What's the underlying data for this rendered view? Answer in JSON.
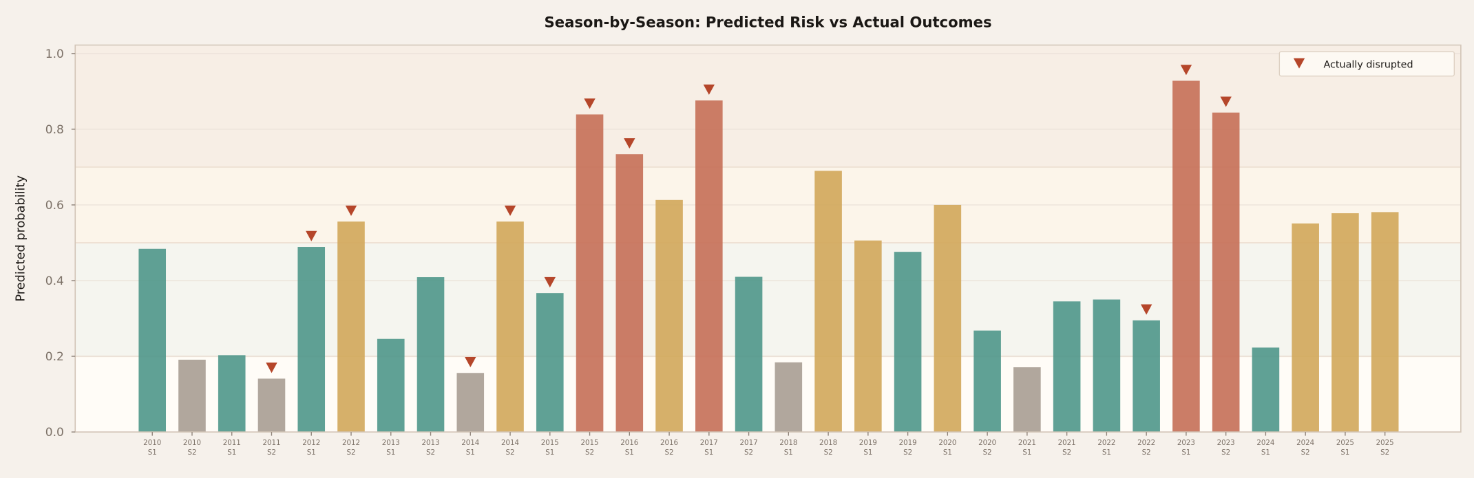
{
  "chart_data": {
    "type": "bar",
    "title": "Season-by-Season: Predicted Risk vs Actual Outcomes",
    "xlabel": "",
    "ylabel": "Predicted probability",
    "ylim": [
      0,
      1.02
    ],
    "yticks": [
      "0.0",
      "0.2",
      "0.4",
      "0.6",
      "0.8",
      "1.0"
    ],
    "grid": true,
    "legend": {
      "placement": "top-right",
      "entries": [
        "Actually disrupted"
      ]
    },
    "categories": [
      [
        "2010",
        "S1"
      ],
      [
        "2010",
        "S2"
      ],
      [
        "2011",
        "S1"
      ],
      [
        "2011",
        "S2"
      ],
      [
        "2012",
        "S1"
      ],
      [
        "2012",
        "S2"
      ],
      [
        "2013",
        "S1"
      ],
      [
        "2013",
        "S2"
      ],
      [
        "2014",
        "S1"
      ],
      [
        "2014",
        "S2"
      ],
      [
        "2015",
        "S1"
      ],
      [
        "2015",
        "S2"
      ],
      [
        "2016",
        "S1"
      ],
      [
        "2016",
        "S2"
      ],
      [
        "2017",
        "S1"
      ],
      [
        "2017",
        "S2"
      ],
      [
        "2018",
        "S1"
      ],
      [
        "2018",
        "S2"
      ],
      [
        "2019",
        "S1"
      ],
      [
        "2019",
        "S2"
      ],
      [
        "2020",
        "S1"
      ],
      [
        "2020",
        "S2"
      ],
      [
        "2021",
        "S1"
      ],
      [
        "2021",
        "S2"
      ],
      [
        "2022",
        "S1"
      ],
      [
        "2022",
        "S2"
      ],
      [
        "2023",
        "S1"
      ],
      [
        "2023",
        "S2"
      ],
      [
        "2024",
        "S1"
      ],
      [
        "2024",
        "S2"
      ],
      [
        "2025",
        "S1"
      ],
      [
        "2025",
        "S2"
      ]
    ],
    "values": [
      0.484,
      0.191,
      0.203,
      0.141,
      0.489,
      0.556,
      0.246,
      0.409,
      0.156,
      0.556,
      0.367,
      0.839,
      0.734,
      0.613,
      0.876,
      0.41,
      0.184,
      0.69,
      0.506,
      0.476,
      0.6,
      0.268,
      0.171,
      0.345,
      0.35,
      0.295,
      0.928,
      0.844,
      0.223,
      0.551,
      0.578,
      0.581
    ],
    "disrupted": [
      false,
      false,
      false,
      true,
      true,
      true,
      false,
      false,
      true,
      true,
      true,
      true,
      true,
      false,
      true,
      false,
      false,
      false,
      false,
      false,
      false,
      false,
      false,
      false,
      false,
      true,
      true,
      true,
      false,
      false,
      false,
      false
    ],
    "risk_bands": [
      {
        "from": 0.0,
        "to": 0.2,
        "bar_color": "#a89d92",
        "band_color": "#fffcf7"
      },
      {
        "from": 0.2,
        "to": 0.5,
        "bar_color": "#4f978a",
        "band_color": "#f5f5ef"
      },
      {
        "from": 0.5,
        "to": 0.7,
        "bar_color": "#d1a75a",
        "band_color": "#fcf5ea"
      },
      {
        "from": 0.7,
        "to": 1.02,
        "bar_color": "#c56f56",
        "band_color": "#f7eee5"
      }
    ],
    "marker_color": "#b5462a"
  }
}
